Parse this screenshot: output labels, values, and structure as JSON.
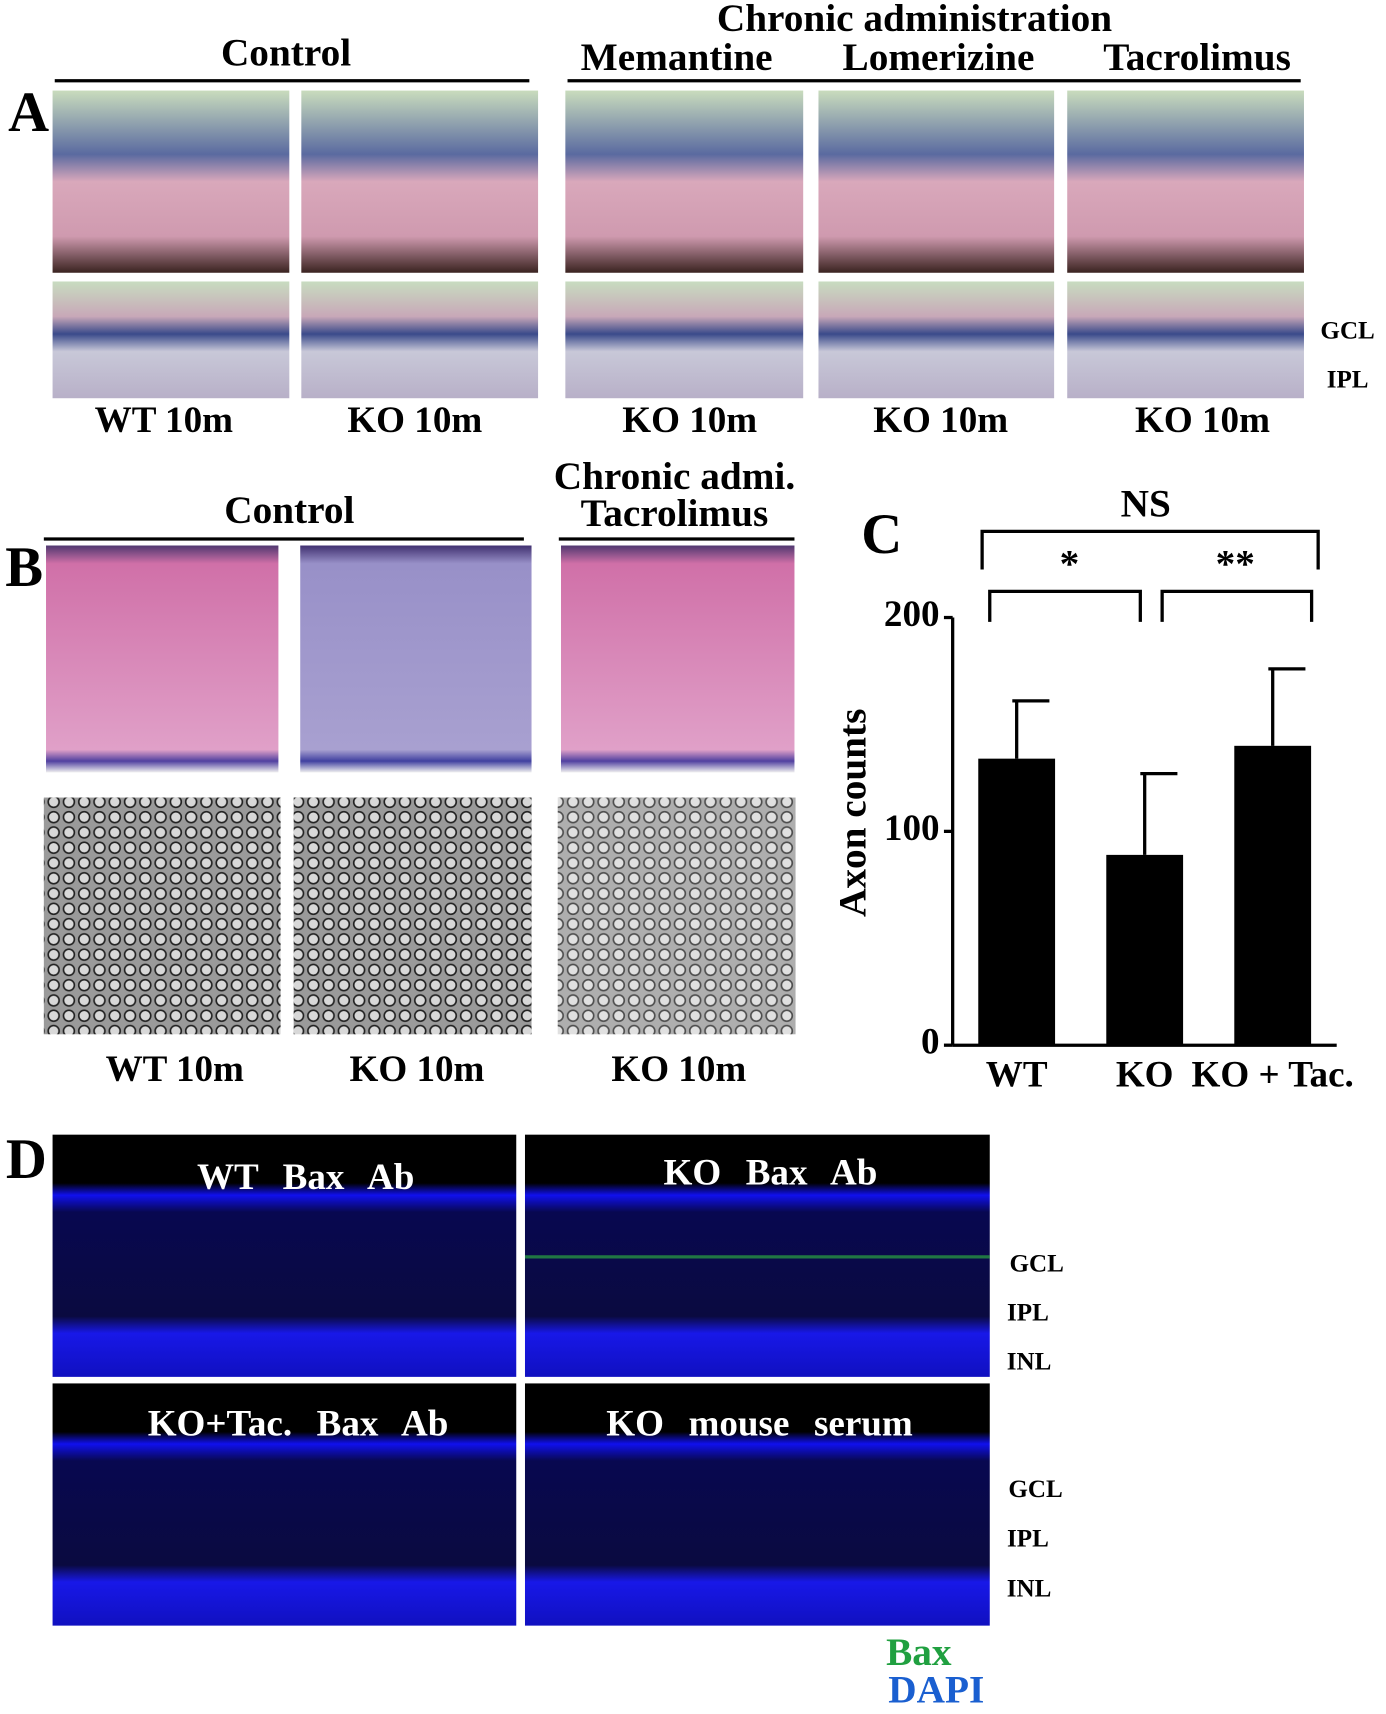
{
  "panel_a": {
    "label": "A",
    "control_title": "Control",
    "treatment_title": "Chronic administration",
    "treatments": [
      "Memantine",
      "Lomerizine",
      "Tacrolimus"
    ],
    "layer_labels": [
      "GCL",
      "IPL"
    ],
    "image_labels": [
      "WT 10m",
      "KO 10m",
      "KO 10m",
      "KO 10m",
      "KO 10m"
    ]
  },
  "panel_b": {
    "label": "B",
    "control_title": "Control",
    "treatment_title": [
      "Chronic admi.",
      "Tacrolimus"
    ],
    "image_labels": [
      "WT 10m",
      "KO 10m",
      "KO 10m"
    ]
  },
  "chart_data": {
    "type": "bar",
    "label": "C",
    "y_label": "Axon counts",
    "categories": [
      "WT",
      "KO",
      "KO + Tac."
    ],
    "values": [
      134,
      89,
      140
    ],
    "errors": [
      27,
      38,
      36
    ],
    "color": "#000000",
    "ylim": [
      0,
      200
    ],
    "yticks": [
      0,
      100,
      200
    ],
    "annotations": [
      "NS",
      "*",
      "**"
    ]
  },
  "panel_d": {
    "label": "D",
    "image_titles": [
      "WT Bax Ab",
      "KO Bax Ab",
      "KO+Tac. Bax Ab",
      "KO mouse serum"
    ],
    "layer_labels": [
      "GCL",
      "IPL",
      "INL"
    ],
    "legend": [
      "Bax",
      "DAPI"
    ]
  }
}
